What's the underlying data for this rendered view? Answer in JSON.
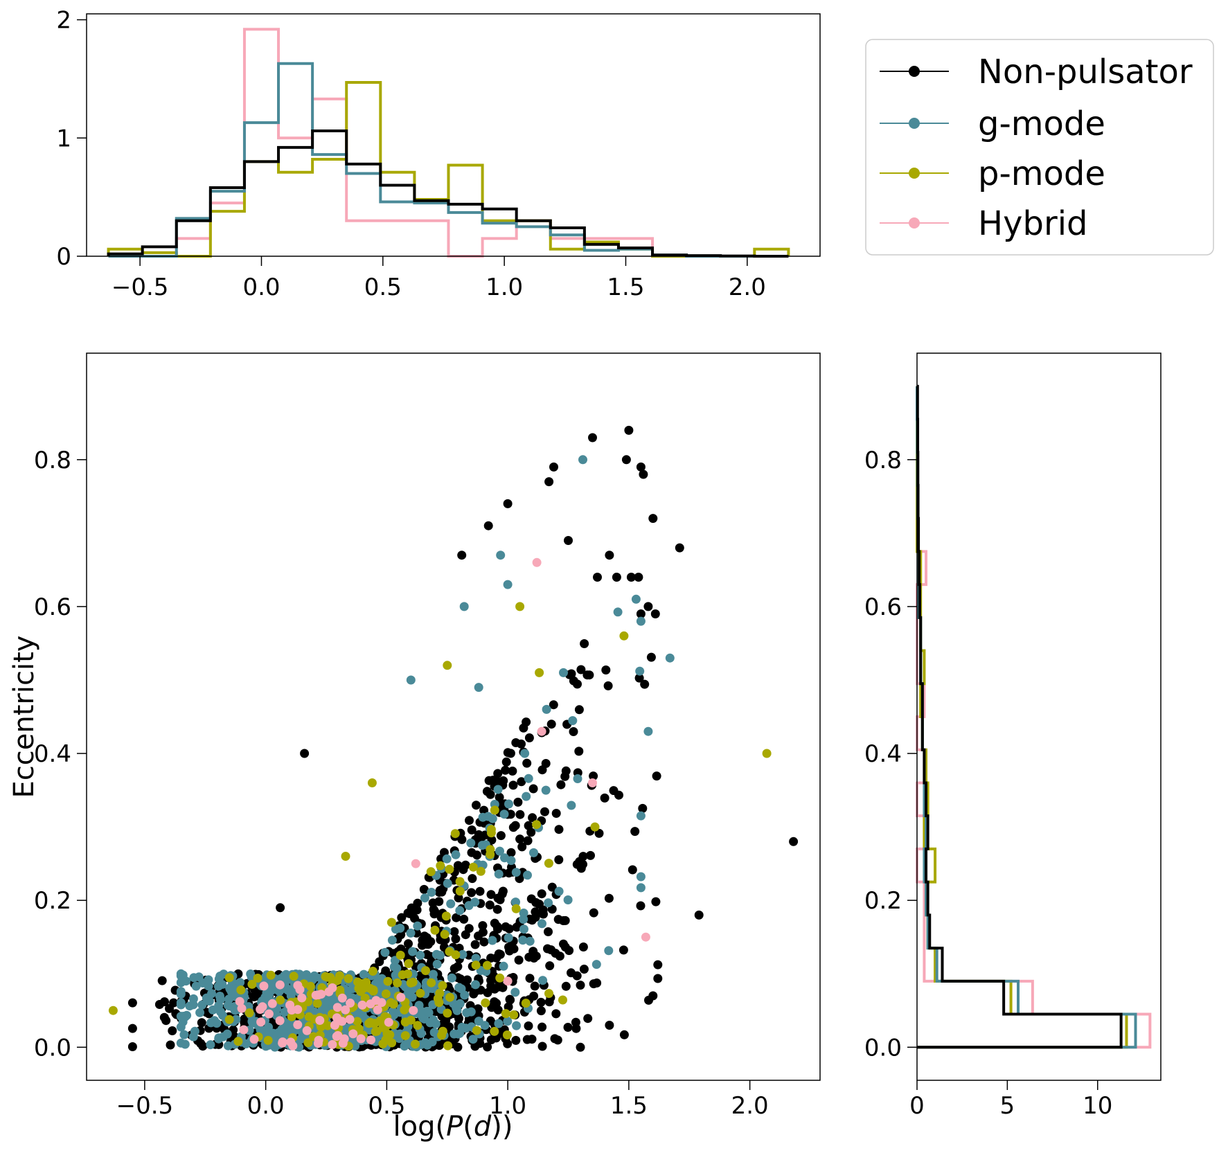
{
  "colors": {
    "nonpulsator": "#000000",
    "gmode": "#4a8a98",
    "pmode": "#a8a800",
    "hybrid": "#f7a8b8"
  },
  "chart_data": [
    {
      "type": "histogram",
      "panel": "top",
      "title": "",
      "xlabel": "",
      "ylabel": "",
      "xlim": [
        -0.72,
        2.3
      ],
      "ylim": [
        0,
        2.05
      ],
      "xticks": [
        -0.5,
        0.0,
        0.5,
        1.0,
        1.5,
        2.0
      ],
      "xtick_labels": [
        "−0.5",
        "0.0",
        "0.5",
        "1.0",
        "1.5",
        "2.0"
      ],
      "yticks": [
        0,
        1,
        2
      ],
      "ytick_labels": [
        "0",
        "1",
        "2"
      ],
      "bin_edges": [
        -0.63,
        -0.49,
        -0.35,
        -0.21,
        -0.07,
        0.07,
        0.21,
        0.35,
        0.49,
        0.63,
        0.77,
        0.91,
        1.05,
        1.19,
        1.33,
        1.47,
        1.61,
        1.75,
        1.89,
        2.03,
        2.17
      ],
      "series": [
        {
          "name": "Hybrid",
          "color_key": "hybrid",
          "values": [
            0,
            0,
            0.15,
            0.45,
            1.92,
            1.0,
            1.33,
            0.3,
            0.3,
            0.3,
            0,
            0.15,
            0.3,
            0.15,
            0.15,
            0.15,
            0,
            0,
            0,
            0
          ]
        },
        {
          "name": "p-mode",
          "color_key": "pmode",
          "values": [
            0.06,
            0.03,
            0,
            0.38,
            0.8,
            0.71,
            0.82,
            1.47,
            0.71,
            0.48,
            0.77,
            0.3,
            0.3,
            0.06,
            0.12,
            0.06,
            0,
            0,
            0,
            0.06
          ]
        },
        {
          "name": "g-mode",
          "color_key": "gmode",
          "values": [
            0,
            0,
            0.32,
            0.55,
            1.13,
            1.63,
            0.86,
            0.7,
            0.46,
            0.45,
            0.37,
            0.28,
            0.25,
            0.18,
            0.05,
            0.06,
            0.01,
            0,
            0,
            0
          ]
        },
        {
          "name": "Non-pulsator",
          "color_key": "nonpulsator",
          "values": [
            0.02,
            0.08,
            0.3,
            0.58,
            0.8,
            0.92,
            1.06,
            0.78,
            0.6,
            0.47,
            0.44,
            0.4,
            0.3,
            0.24,
            0.1,
            0.07,
            0.01,
            0.005,
            0.002,
            0
          ]
        }
      ]
    },
    {
      "type": "scatter",
      "panel": "main",
      "title": "",
      "xlabel": "log(P(d))",
      "ylabel": "Eccentricity",
      "xlim": [
        -0.74,
        2.29
      ],
      "ylim": [
        -0.045,
        0.945
      ],
      "xticks": [
        -0.5,
        0.0,
        0.5,
        1.0,
        1.5,
        2.0
      ],
      "xtick_labels": [
        "−0.5",
        "0.0",
        "0.5",
        "1.0",
        "1.5",
        "2.0"
      ],
      "yticks": [
        0.0,
        0.2,
        0.4,
        0.6,
        0.8
      ],
      "ytick_labels": [
        "0.0",
        "0.2",
        "0.4",
        "0.6",
        "0.8"
      ],
      "generated_cloud_counts": {
        "nonpulsator": 1400,
        "gmode": 650,
        "pmode": 170,
        "hybrid": 55
      },
      "series": [
        {
          "name": "Non-pulsator",
          "color_key": "nonpulsator",
          "points": [
            [
              1.5,
              0.84
            ],
            [
              1.35,
              0.83
            ],
            [
              1.19,
              0.79
            ],
            [
              1.17,
              0.77
            ],
            [
              1.56,
              0.78
            ],
            [
              1.6,
              0.72
            ],
            [
              1.71,
              0.68
            ],
            [
              1.49,
              0.8
            ],
            [
              1.55,
              0.79
            ],
            [
              1.0,
              0.74
            ],
            [
              0.92,
              0.71
            ],
            [
              1.25,
              0.69
            ],
            [
              1.42,
              0.67
            ],
            [
              0.81,
              0.67
            ],
            [
              1.51,
              0.64
            ],
            [
              1.54,
              0.64
            ],
            [
              1.79,
              0.18
            ],
            [
              2.18,
              0.28
            ],
            [
              0.16,
              0.4
            ],
            [
              0.06,
              0.19
            ],
            [
              1.6,
              0.07
            ],
            [
              1.42,
              0.03
            ],
            [
              1.3,
              0.0
            ],
            [
              1.55,
              0.59
            ],
            [
              1.61,
              0.59
            ],
            [
              1.58,
              0.6
            ],
            [
              1.37,
              0.64
            ],
            [
              1.45,
              0.64
            ]
          ]
        },
        {
          "name": "g-mode",
          "color_key": "gmode",
          "points": [
            [
              1.31,
              0.8
            ],
            [
              0.97,
              0.67
            ],
            [
              1.67,
              0.53
            ],
            [
              1.53,
              0.61
            ],
            [
              1.55,
              0.58
            ],
            [
              1.58,
              0.43
            ],
            [
              0.82,
              0.6
            ],
            [
              0.6,
              0.5
            ],
            [
              1.0,
              0.63
            ],
            [
              1.07,
              0.4
            ],
            [
              1.16,
              0.46
            ],
            [
              1.23,
              0.51
            ],
            [
              0.88,
              0.49
            ]
          ]
        },
        {
          "name": "p-mode",
          "color_key": "pmode",
          "points": [
            [
              2.07,
              0.4
            ],
            [
              -0.63,
              0.05
            ],
            [
              1.48,
              0.56
            ],
            [
              0.75,
              0.52
            ],
            [
              1.05,
              0.6
            ],
            [
              1.13,
              0.51
            ],
            [
              0.44,
              0.36
            ],
            [
              0.33,
              0.26
            ],
            [
              0.52,
              0.17
            ],
            [
              1.36,
              0.3
            ]
          ]
        },
        {
          "name": "Hybrid",
          "color_key": "hybrid",
          "points": [
            [
              1.12,
              0.66
            ],
            [
              1.57,
              0.15
            ],
            [
              1.35,
              0.36
            ],
            [
              1.14,
              0.43
            ],
            [
              0.61,
              0.05
            ],
            [
              0.62,
              0.25
            ],
            [
              1.0,
              0.09
            ]
          ]
        }
      ]
    },
    {
      "type": "histogram",
      "panel": "right",
      "orientation": "horizontal",
      "title": "",
      "xlabel": "",
      "ylabel": "",
      "xlim": [
        0,
        13.5
      ],
      "ylim": [
        -0.045,
        0.945
      ],
      "xticks": [
        0,
        5,
        10
      ],
      "xtick_labels": [
        "0",
        "5",
        "10"
      ],
      "yticks": [
        0.0,
        0.2,
        0.4,
        0.6,
        0.8
      ],
      "ytick_labels": [
        "0.0",
        "0.2",
        "0.4",
        "0.6",
        "0.8"
      ],
      "bin_edges": [
        0.0,
        0.045,
        0.09,
        0.135,
        0.18,
        0.225,
        0.27,
        0.315,
        0.36,
        0.405,
        0.45,
        0.495,
        0.54,
        0.585,
        0.63,
        0.675,
        0.72,
        0.765,
        0.81,
        0.855,
        0.9
      ],
      "series": [
        {
          "name": "Hybrid",
          "color_key": "hybrid",
          "values": [
            12.9,
            6.4,
            0.4,
            0.4,
            0.4,
            0.0,
            0.4,
            0.0,
            0.4,
            0.0,
            0.4,
            0.0,
            0.0,
            0.0,
            0.5,
            0.0,
            0.0,
            0.0,
            0.0,
            0.0
          ]
        },
        {
          "name": "p-mode",
          "color_key": "pmode",
          "values": [
            11.6,
            5.2,
            1.0,
            0.6,
            0.5,
            1.0,
            0.4,
            0.6,
            0.5,
            0.3,
            0.2,
            0.4,
            0.2,
            0.2,
            0.2,
            0.0,
            0.0,
            0.0,
            0.0,
            0.0
          ]
        },
        {
          "name": "g-mode",
          "color_key": "gmode",
          "values": [
            12.1,
            5.6,
            1.1,
            0.6,
            0.5,
            0.4,
            0.5,
            0.4,
            0.4,
            0.3,
            0.3,
            0.2,
            0.2,
            0.1,
            0.1,
            0.05,
            0.03,
            0.02,
            0.01,
            0.0
          ]
        },
        {
          "name": "Non-pulsator",
          "color_key": "nonpulsator",
          "values": [
            11.3,
            4.8,
            1.4,
            0.7,
            0.6,
            0.5,
            0.6,
            0.5,
            0.4,
            0.3,
            0.3,
            0.2,
            0.2,
            0.15,
            0.12,
            0.08,
            0.06,
            0.05,
            0.04,
            0.03
          ]
        }
      ]
    }
  ],
  "legend": {
    "items": [
      {
        "label": "Non-pulsator",
        "color_key": "nonpulsator"
      },
      {
        "label": "g-mode",
        "color_key": "gmode"
      },
      {
        "label": "p-mode",
        "color_key": "pmode"
      },
      {
        "label": "Hybrid",
        "color_key": "hybrid"
      }
    ]
  }
}
